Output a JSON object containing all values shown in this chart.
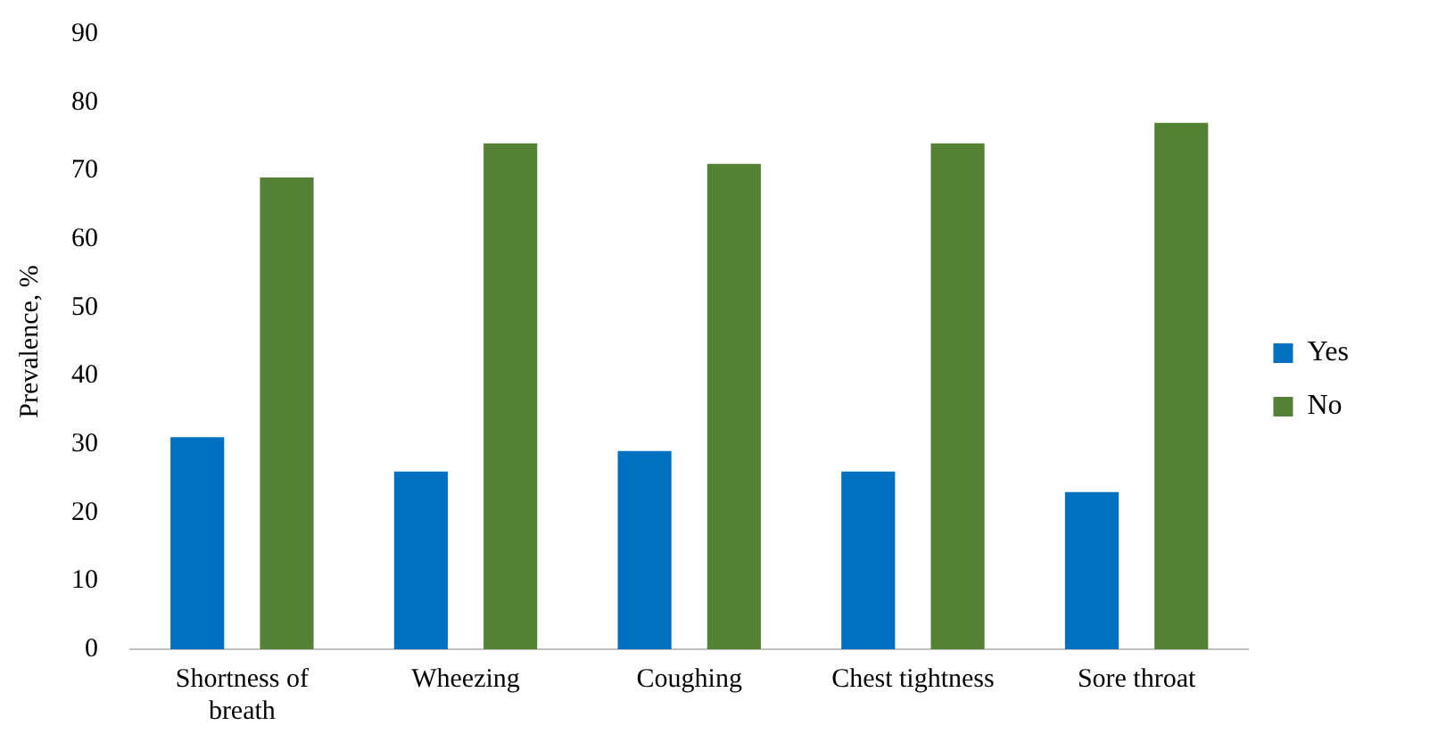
{
  "chart_data": {
    "type": "bar",
    "ylabel": "Prevalence, %",
    "categories": [
      "Shortness of breath",
      "Wheezing",
      "Coughing",
      "Chest tightness",
      "Sore throat"
    ],
    "series": [
      {
        "name": "Yes",
        "color": "#0070c0",
        "values": [
          31,
          26,
          29,
          26,
          23
        ]
      },
      {
        "name": "No",
        "color": "#548235",
        "values": [
          69,
          74,
          71,
          74,
          77
        ]
      }
    ],
    "ylim": [
      0,
      90
    ],
    "yticks": [
      0,
      10,
      20,
      30,
      40,
      50,
      60,
      70,
      80,
      90
    ],
    "grid": false,
    "legend": "right"
  }
}
